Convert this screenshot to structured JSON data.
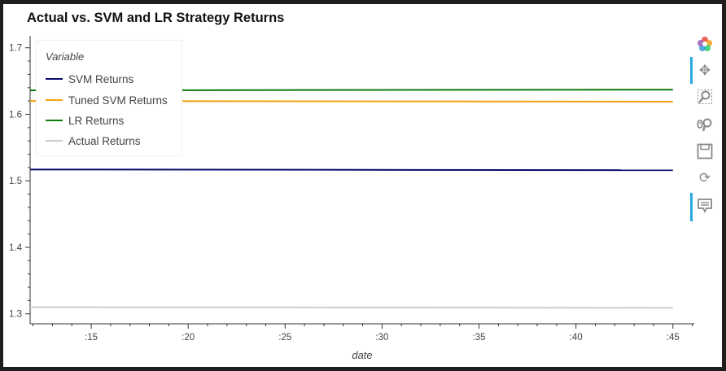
{
  "chart_data": {
    "type": "line",
    "title": "Actual vs. SVM and LR Strategy Returns",
    "xlabel": "date",
    "ylabel": "",
    "x_tick_labels": [
      ":15",
      ":20",
      ":25",
      ":30",
      ":35",
      ":40",
      ":45"
    ],
    "x_ticks": [
      15,
      20,
      25,
      30,
      35,
      40,
      45
    ],
    "xlim": [
      11.85,
      46.1
    ],
    "y_ticks": [
      1.3,
      1.4,
      1.5,
      1.6,
      1.7
    ],
    "y_tick_labels": [
      "1.3",
      "1.4",
      "1.5",
      "1.6",
      "1.7"
    ],
    "ylim": [
      1.285,
      1.718
    ],
    "grid": false,
    "legend": {
      "title": "Variable",
      "placement": "top-left"
    },
    "x": [
      11.85,
      45
    ],
    "series": [
      {
        "name": "SVM Returns",
        "color": "#0b0b6b",
        "values": [
          1.517,
          1.516
        ]
      },
      {
        "name": "Tuned SVM Returns",
        "color": "#f2a20f",
        "values": [
          1.62,
          1.619
        ]
      },
      {
        "name": "LR Returns",
        "color": "#0a7d0a",
        "values": [
          1.636,
          1.637
        ]
      },
      {
        "name": "Actual Returns",
        "color": "#cccccc",
        "values": [
          1.31,
          1.309
        ]
      }
    ]
  },
  "toolbar": {
    "items": [
      {
        "name": "bokeh-logo-icon"
      },
      {
        "name": "pan-icon"
      },
      {
        "name": "box-zoom-icon"
      },
      {
        "name": "wheel-zoom-icon"
      },
      {
        "name": "save-icon"
      },
      {
        "name": "reset-icon"
      },
      {
        "name": "hover-icon"
      }
    ]
  }
}
